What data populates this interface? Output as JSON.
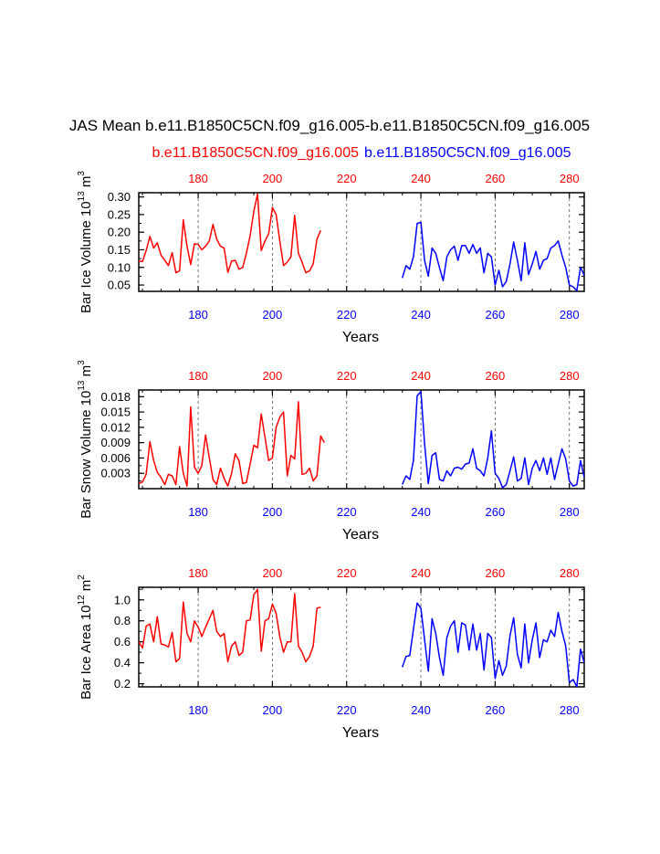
{
  "page": {
    "title": "JAS Mean b.e11.B1850C5CN.f09_g16.005-b.e11.B1850C5CN.f09_g16.005",
    "legend": [
      {
        "label": "b.e11.B1850C5CN.f09_g16.005",
        "color": "#ff0000"
      },
      {
        "label": "b.e11.B1850C5CN.f09_g16.005",
        "color": "#0000ff"
      }
    ]
  },
  "chart_data": [
    {
      "type": "line",
      "xlabel": "Years",
      "ylabel": "Bar Ice Volume 10",
      "ylabel_exp": "13",
      "ylabel_unit": " m",
      "ylabel_unit_exp": "3",
      "xlim": [
        164,
        284
      ],
      "ylim": [
        0.032,
        0.312
      ],
      "yticks": [
        0.05,
        0.1,
        0.15,
        0.2,
        0.25,
        0.3
      ],
      "ytick_labels": [
        "0.05",
        "0.10",
        "0.15",
        "0.20",
        "0.25",
        "0.30"
      ],
      "xticks": [
        180,
        200,
        220,
        240,
        260,
        280
      ],
      "top_tick_labels": [
        "180",
        "200",
        "220",
        "240",
        "260",
        "280"
      ],
      "bottom_tick_labels": [
        "180",
        "200",
        "220",
        "240",
        "260",
        "280"
      ],
      "grid": "dashed vertical at x ticks",
      "series": [
        {
          "color": "#ff0000",
          "x_start": 164,
          "values": [
            0.118,
            0.117,
            0.148,
            0.188,
            0.155,
            0.17,
            0.135,
            0.12,
            0.105,
            0.142,
            0.085,
            0.09,
            0.235,
            0.16,
            0.108,
            0.167,
            0.165,
            0.15,
            0.16,
            0.175,
            0.222,
            0.18,
            0.16,
            0.155,
            0.086,
            0.118,
            0.12,
            0.095,
            0.1,
            0.14,
            0.19,
            0.26,
            0.308,
            0.148,
            0.175,
            0.195,
            0.27,
            0.25,
            0.175,
            0.105,
            0.115,
            0.13,
            0.248,
            0.14,
            0.115,
            0.085,
            0.09,
            0.11,
            0.18,
            0.205
          ]
        },
        {
          "color": "#0000ff",
          "x_start": 235,
          "values": [
            0.07,
            0.105,
            0.095,
            0.13,
            0.225,
            0.228,
            0.12,
            0.075,
            0.155,
            0.14,
            0.1,
            0.062,
            0.13,
            0.15,
            0.16,
            0.12,
            0.162,
            0.162,
            0.14,
            0.165,
            0.14,
            0.155,
            0.085,
            0.14,
            0.13,
            0.05,
            0.092,
            0.045,
            0.06,
            0.11,
            0.172,
            0.12,
            0.062,
            0.17,
            0.08,
            0.11,
            0.145,
            0.095,
            0.12,
            0.125,
            0.155,
            0.162,
            0.175,
            0.135,
            0.1,
            0.05,
            0.045,
            0.034,
            0.1,
            0.078
          ]
        }
      ]
    },
    {
      "type": "line",
      "xlabel": "Years",
      "ylabel": "Bar Snow Volume 10",
      "ylabel_exp": "13",
      "ylabel_unit": " m",
      "ylabel_unit_exp": "3",
      "xlim": [
        164,
        284
      ],
      "ylim": [
        0,
        0.0193
      ],
      "yticks": [
        0.003,
        0.006,
        0.009,
        0.012,
        0.015,
        0.018
      ],
      "ytick_labels": [
        "0.003",
        "0.006",
        "0.009",
        "0.012",
        "0.015",
        "0.018"
      ],
      "xticks": [
        180,
        200,
        220,
        240,
        260,
        280
      ],
      "top_tick_labels": [
        "180",
        "200",
        "220",
        "240",
        "260",
        "280"
      ],
      "bottom_tick_labels": [
        "180",
        "200",
        "220",
        "240",
        "260",
        "280"
      ],
      "grid": "dashed vertical at x ticks",
      "series": [
        {
          "color": "#ff0000",
          "x_start": 164,
          "values": [
            0.001,
            0.0013,
            0.0028,
            0.0092,
            0.0055,
            0.0032,
            0.0022,
            0.0008,
            0.0028,
            0.0025,
            0.0008,
            0.0082,
            0.003,
            0.0005,
            0.016,
            0.0042,
            0.003,
            0.0045,
            0.0105,
            0.006,
            0.0018,
            0.0008,
            0.004,
            0.002,
            0.0005,
            0.003,
            0.0068,
            0.0055,
            0.001,
            0.0012,
            0.0048,
            0.0085,
            0.008,
            0.0146,
            0.01,
            0.0055,
            0.006,
            0.012,
            0.014,
            0.015,
            0.0025,
            0.0065,
            0.0058,
            0.017,
            0.0028,
            0.003,
            0.004,
            0.0015,
            0.0025,
            0.0103,
            0.009
          ]
        },
        {
          "color": "#0000ff",
          "x_start": 235,
          "values": [
            0.0008,
            0.0025,
            0.0018,
            0.0055,
            0.0182,
            0.019,
            0.0088,
            0.001,
            0.0065,
            0.007,
            0.0018,
            0.0015,
            0.0035,
            0.0025,
            0.004,
            0.0042,
            0.0038,
            0.0048,
            0.005,
            0.0078,
            0.004,
            0.0035,
            0.0025,
            0.006,
            0.0113,
            0.003,
            0.002,
            0.0002,
            0.0008,
            0.0035,
            0.0062,
            0.0015,
            0.002,
            0.006,
            0.0008,
            0.004,
            0.0055,
            0.0035,
            0.006,
            0.0028,
            0.006,
            0.0018,
            0.0048,
            0.0078,
            0.0058,
            0.0015,
            0.0005,
            0.0008,
            0.0055,
            0.0022
          ]
        }
      ]
    },
    {
      "type": "line",
      "xlabel": "Years",
      "ylabel": "Bar Ice Area 10",
      "ylabel_exp": "12",
      "ylabel_unit": " m",
      "ylabel_unit_exp": "2",
      "xlim": [
        164,
        284
      ],
      "ylim": [
        0.17,
        1.12
      ],
      "yticks": [
        0.2,
        0.4,
        0.6,
        0.8,
        1.0
      ],
      "ytick_labels": [
        "0.2",
        "0.4",
        "0.6",
        "0.8",
        "1.0"
      ],
      "xticks": [
        180,
        200,
        220,
        240,
        260,
        280
      ],
      "top_tick_labels": [
        "180",
        "200",
        "220",
        "240",
        "260",
        "280"
      ],
      "bottom_tick_labels": [
        "180",
        "200",
        "220",
        "240",
        "260",
        "280"
      ],
      "grid": "dashed vertical at x ticks",
      "series": [
        {
          "color": "#ff0000",
          "x_start": 164,
          "values": [
            0.6,
            0.54,
            0.75,
            0.77,
            0.6,
            0.84,
            0.58,
            0.57,
            0.55,
            0.69,
            0.41,
            0.44,
            0.98,
            0.68,
            0.6,
            0.8,
            0.74,
            0.65,
            0.74,
            0.82,
            0.9,
            0.7,
            0.65,
            0.68,
            0.41,
            0.56,
            0.6,
            0.47,
            0.5,
            0.8,
            0.81,
            1.05,
            1.1,
            0.51,
            0.8,
            0.82,
            0.96,
            0.87,
            0.65,
            0.5,
            0.6,
            0.6,
            1.06,
            0.56,
            0.5,
            0.41,
            0.46,
            0.56,
            0.92,
            0.93
          ]
        },
        {
          "color": "#0000ff",
          "x_start": 235,
          "values": [
            0.36,
            0.46,
            0.47,
            0.72,
            0.97,
            0.92,
            0.62,
            0.32,
            0.82,
            0.68,
            0.45,
            0.28,
            0.64,
            0.75,
            0.8,
            0.5,
            0.78,
            0.76,
            0.52,
            0.77,
            0.52,
            0.68,
            0.33,
            0.68,
            0.64,
            0.25,
            0.42,
            0.28,
            0.37,
            0.66,
            0.83,
            0.48,
            0.35,
            0.77,
            0.4,
            0.62,
            0.78,
            0.45,
            0.62,
            0.6,
            0.71,
            0.65,
            0.88,
            0.7,
            0.56,
            0.21,
            0.24,
            0.17,
            0.53,
            0.4
          ]
        }
      ]
    }
  ]
}
